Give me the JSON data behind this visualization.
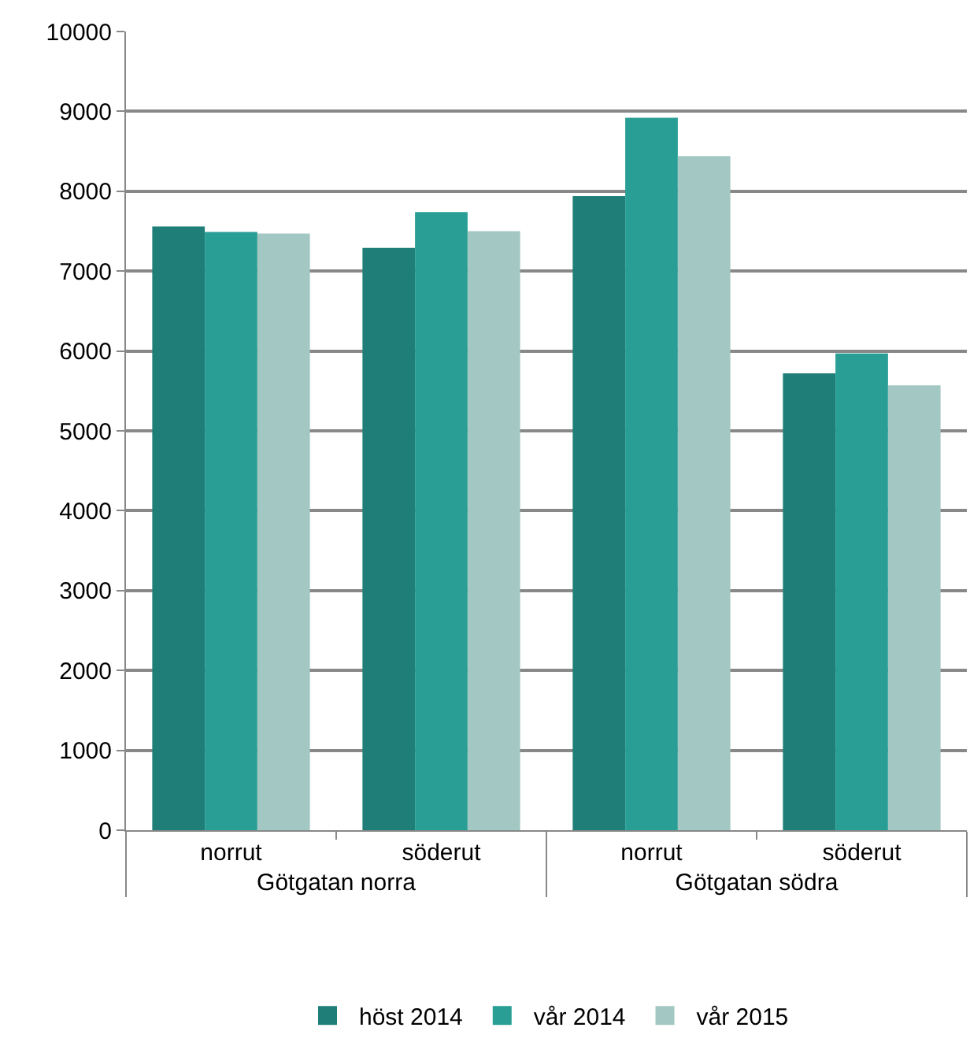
{
  "chart_data": {
    "type": "bar",
    "categories": [
      "norrut",
      "söderut",
      "norrut",
      "söderut"
    ],
    "annotations": [
      "Götgatan norra",
      "Götgatan södra"
    ],
    "series": [
      {
        "name": "höst 2014",
        "color": "#1f7f78",
        "values": [
          7560,
          7290,
          7940,
          5720
        ]
      },
      {
        "name": "vår 2014",
        "color": "#289e94",
        "values": [
          7490,
          7740,
          8920,
          5970
        ]
      },
      {
        "name": "vår 2015",
        "color": "#a3c7c2",
        "values": [
          7470,
          7500,
          8440,
          5570
        ]
      }
    ],
    "ylim": [
      0,
      10000
    ],
    "yticks": [
      0,
      1000,
      2000,
      3000,
      4000,
      5000,
      6000,
      7000,
      8000,
      9000,
      10000
    ],
    "grid": "y",
    "legend": "bottom"
  }
}
